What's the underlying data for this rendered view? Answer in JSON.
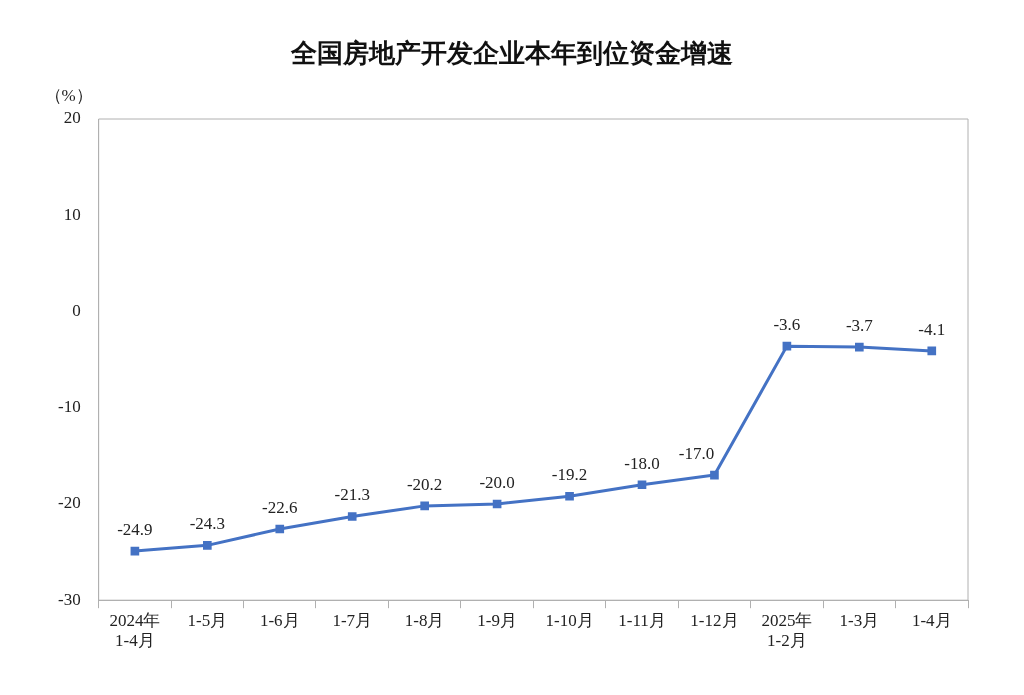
{
  "chart_data": {
    "type": "line",
    "title": "全国房地产开发企业本年到位资金增速",
    "ylabel": "（%）",
    "categories": [
      "2024年\n1-4月",
      "1-5月",
      "1-6月",
      "1-7月",
      "1-8月",
      "1-9月",
      "1-10月",
      "1-11月",
      "1-12月",
      "2025年\n1-2月",
      "1-3月",
      "1-4月"
    ],
    "series": [
      {
        "color": "#4472c4",
        "values": [
          -24.9,
          -24.3,
          -22.6,
          -21.3,
          -20.2,
          -20.0,
          -19.2,
          -18.0,
          -17.0,
          -3.6,
          -3.7,
          -4.1
        ],
        "value_labels": [
          "-24.9",
          "-24.3",
          "-22.6",
          "-21.3",
          "-20.2",
          "-20.0",
          "-19.2",
          "-18.0",
          "-17.0",
          "-3.6",
          "-3.7",
          "-4.1"
        ]
      }
    ],
    "ylim": [
      -30,
      20
    ],
    "yticks": [
      -30,
      -20,
      -10,
      0,
      10,
      20
    ],
    "grid": false,
    "legend": false,
    "marker": "square",
    "line_style": "solid"
  }
}
